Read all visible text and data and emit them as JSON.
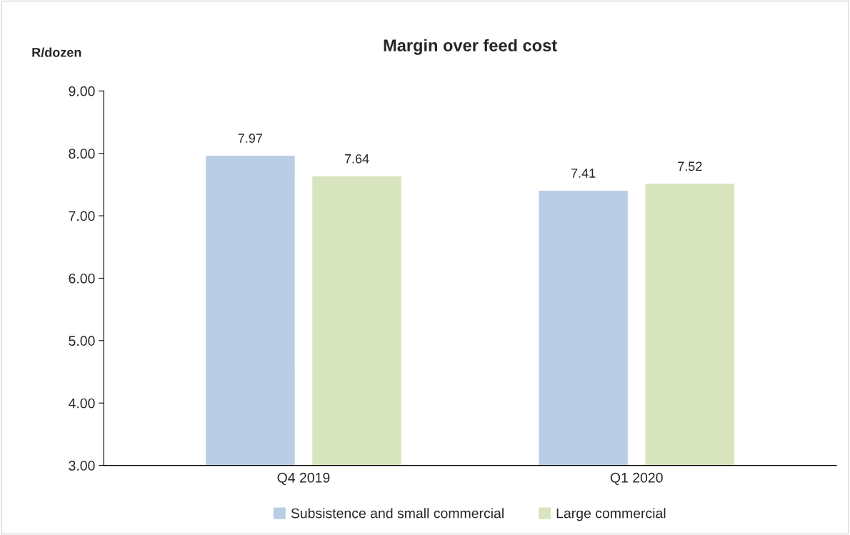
{
  "chart_data": {
    "type": "bar",
    "title": "Margin over feed cost",
    "ylabel": "R/dozen",
    "categories": [
      "Q4 2019",
      "Q1 2020"
    ],
    "series": [
      {
        "name": "Subsistence and small commercial",
        "color": "#b9cde5",
        "values": [
          7.97,
          7.41
        ]
      },
      {
        "name": "Large commercial",
        "color": "#d7e4bd",
        "values": [
          7.64,
          7.52
        ]
      }
    ],
    "ylim": [
      3,
      9
    ],
    "yticks": [
      {
        "value": 3,
        "label": "3.00"
      },
      {
        "value": 4,
        "label": "4.00"
      },
      {
        "value": 5,
        "label": "5.00"
      },
      {
        "value": 6,
        "label": "6.00"
      },
      {
        "value": 7,
        "label": "7.00"
      },
      {
        "value": 8,
        "label": "8.00"
      },
      {
        "value": 9,
        "label": "9.00"
      }
    ],
    "data_labels": true,
    "grid": false,
    "legend": "bottom"
  }
}
